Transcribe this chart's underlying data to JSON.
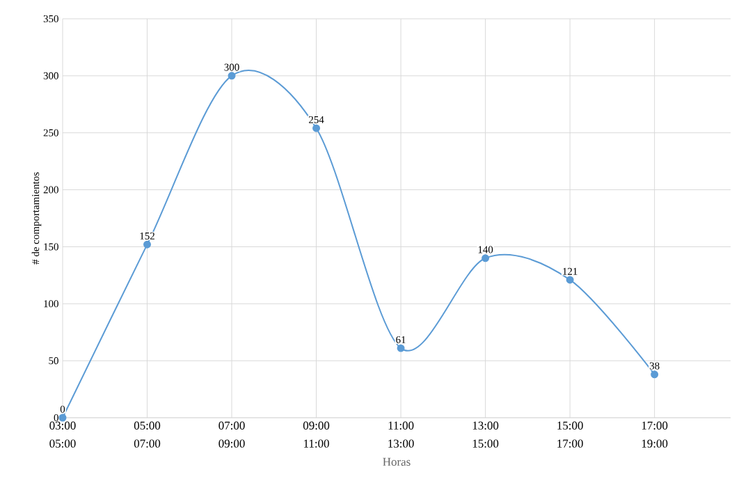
{
  "chart_data": {
    "type": "line",
    "xlabel": "Horas",
    "ylabel": "# de comportamientos",
    "categories": [
      "03:00 05:00",
      "05:00 07:00",
      "07:00 09:00",
      "09:00 11:00",
      "11:00 13:00",
      "13:00 15:00",
      "15:00 17:00",
      "17:00 19:00"
    ],
    "values": [
      0,
      152,
      300,
      254,
      61,
      140,
      121,
      38
    ],
    "color": "#5b9bd5",
    "ylim": [
      0,
      350
    ],
    "yticks": [
      0,
      50,
      100,
      150,
      200,
      250,
      300,
      350
    ],
    "grid": true,
    "data_labels": true,
    "marker": "circle",
    "line_style": "solid"
  }
}
